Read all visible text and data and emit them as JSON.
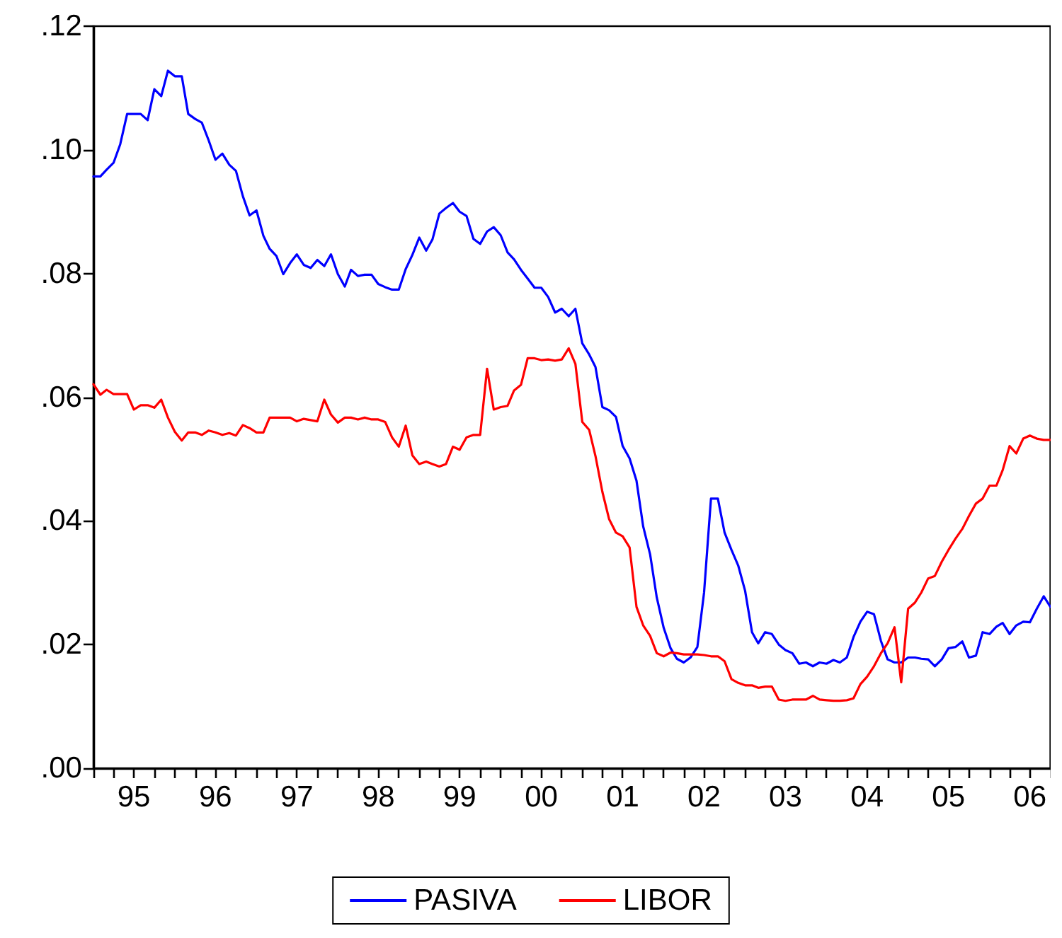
{
  "chart_data": {
    "type": "line",
    "x": [
      "1995-01",
      "1995-02",
      "1995-03",
      "1995-04",
      "1995-05",
      "1995-06",
      "1995-07",
      "1995-08",
      "1995-09",
      "1995-10",
      "1995-11",
      "1995-12",
      "1996-01",
      "1996-02",
      "1996-03",
      "1996-04",
      "1996-05",
      "1996-06",
      "1996-07",
      "1996-08",
      "1996-09",
      "1996-10",
      "1996-11",
      "1996-12",
      "1997-01",
      "1997-02",
      "1997-03",
      "1997-04",
      "1997-05",
      "1997-06",
      "1997-07",
      "1997-08",
      "1997-09",
      "1997-10",
      "1997-11",
      "1997-12",
      "1998-01",
      "1998-02",
      "1998-03",
      "1998-04",
      "1998-05",
      "1998-06",
      "1998-07",
      "1998-08",
      "1998-09",
      "1998-10",
      "1998-11",
      "1998-12",
      "1999-01",
      "1999-02",
      "1999-03",
      "1999-04",
      "1999-05",
      "1999-06",
      "1999-07",
      "1999-08",
      "1999-09",
      "1999-10",
      "1999-11",
      "1999-12",
      "2000-01",
      "2000-02",
      "2000-03",
      "2000-04",
      "2000-05",
      "2000-06",
      "2000-07",
      "2000-08",
      "2000-09",
      "2000-10",
      "2000-11",
      "2000-12",
      "2001-01",
      "2001-02",
      "2001-03",
      "2001-04",
      "2001-05",
      "2001-06",
      "2001-07",
      "2001-08",
      "2001-09",
      "2001-10",
      "2001-11",
      "2001-12",
      "2002-01",
      "2002-02",
      "2002-03",
      "2002-04",
      "2002-05",
      "2002-06",
      "2002-07",
      "2002-08",
      "2002-09",
      "2002-10",
      "2002-11",
      "2002-12",
      "2003-01",
      "2003-02",
      "2003-03",
      "2003-04",
      "2003-05",
      "2003-06",
      "2003-07",
      "2003-08",
      "2003-09",
      "2003-10",
      "2003-11",
      "2003-12",
      "2004-01",
      "2004-02",
      "2004-03",
      "2004-04",
      "2004-05",
      "2004-06",
      "2004-07",
      "2004-08",
      "2004-09",
      "2004-10",
      "2004-11",
      "2004-12",
      "2005-01",
      "2005-02",
      "2005-03",
      "2005-04",
      "2005-05",
      "2005-06",
      "2005-07",
      "2005-08",
      "2005-09",
      "2005-10",
      "2005-11",
      "2005-12",
      "2006-01",
      "2006-02",
      "2006-03",
      "2006-04",
      "2006-05",
      "2006-06",
      "2006-07",
      "2006-08",
      "2006-09",
      "2006-10"
    ],
    "series": [
      {
        "name": "PASIVA",
        "color": "#0000ff",
        "values": [
          0.0957,
          0.0957,
          0.0968,
          0.0979,
          0.1009,
          0.1058,
          0.1058,
          0.1058,
          0.1048,
          0.1098,
          0.1087,
          0.1128,
          0.1119,
          0.1119,
          0.1058,
          0.105,
          0.1044,
          0.1015,
          0.0984,
          0.0994,
          0.0976,
          0.0966,
          0.0925,
          0.0894,
          0.0902,
          0.0861,
          0.084,
          0.0828,
          0.0799,
          0.0817,
          0.0831,
          0.0814,
          0.0809,
          0.0822,
          0.0812,
          0.0831,
          0.0799,
          0.0779,
          0.0806,
          0.0796,
          0.0798,
          0.0798,
          0.0783,
          0.0778,
          0.0774,
          0.0774,
          0.0807,
          0.083,
          0.0858,
          0.0837,
          0.0855,
          0.0897,
          0.0906,
          0.0914,
          0.09,
          0.0893,
          0.0856,
          0.0848,
          0.0868,
          0.0875,
          0.0862,
          0.0834,
          0.0823,
          0.0806,
          0.0792,
          0.0777,
          0.0777,
          0.0762,
          0.0737,
          0.0743,
          0.0731,
          0.0743,
          0.0687,
          0.0669,
          0.0649,
          0.0584,
          0.0579,
          0.0568,
          0.0521,
          0.0501,
          0.0465,
          0.0391,
          0.0346,
          0.0276,
          0.0227,
          0.0194,
          0.0177,
          0.0171,
          0.0179,
          0.0196,
          0.0284,
          0.0436,
          0.0436,
          0.0381,
          0.0353,
          0.0328,
          0.0287,
          0.022,
          0.0202,
          0.022,
          0.0217,
          0.02,
          0.0191,
          0.0186,
          0.0169,
          0.0171,
          0.0165,
          0.0171,
          0.0169,
          0.0175,
          0.0171,
          0.0179,
          0.0212,
          0.0237,
          0.0253,
          0.0249,
          0.0206,
          0.0176,
          0.0171,
          0.0171,
          0.0179,
          0.0179,
          0.0177,
          0.0176,
          0.0165,
          0.0176,
          0.0194,
          0.0196,
          0.0205,
          0.0179,
          0.0182,
          0.022,
          0.0217,
          0.0229,
          0.0235,
          0.0217,
          0.0231,
          0.0237,
          0.0236,
          0.0258,
          0.0278,
          0.0261
        ]
      },
      {
        "name": "LIBOR",
        "color": "#ff0000",
        "values": [
          0.0621,
          0.0604,
          0.0612,
          0.0605,
          0.0605,
          0.0605,
          0.058,
          0.0587,
          0.0587,
          0.0583,
          0.0596,
          0.0567,
          0.0544,
          0.053,
          0.0543,
          0.0543,
          0.0539,
          0.0546,
          0.0543,
          0.0539,
          0.0542,
          0.0538,
          0.0555,
          0.055,
          0.0543,
          0.0543,
          0.0567,
          0.0567,
          0.0567,
          0.0567,
          0.0561,
          0.0565,
          0.0563,
          0.0561,
          0.0596,
          0.0572,
          0.0559,
          0.0567,
          0.0567,
          0.0564,
          0.0567,
          0.0564,
          0.0564,
          0.056,
          0.0535,
          0.052,
          0.0554,
          0.0506,
          0.0492,
          0.0496,
          0.0492,
          0.0488,
          0.0492,
          0.052,
          0.0515,
          0.0535,
          0.0539,
          0.0539,
          0.0646,
          0.058,
          0.0584,
          0.0586,
          0.0611,
          0.062,
          0.0663,
          0.0663,
          0.066,
          0.0661,
          0.0659,
          0.0661,
          0.0679,
          0.0654,
          0.056,
          0.0547,
          0.0505,
          0.0447,
          0.0403,
          0.0381,
          0.0375,
          0.0357,
          0.0261,
          0.0231,
          0.0214,
          0.0186,
          0.0181,
          0.0187,
          0.0186,
          0.0184,
          0.0184,
          0.0184,
          0.0183,
          0.0181,
          0.0181,
          0.0173,
          0.0144,
          0.0138,
          0.0134,
          0.0134,
          0.013,
          0.0132,
          0.0132,
          0.0111,
          0.0109,
          0.0111,
          0.0111,
          0.0111,
          0.0117,
          0.0111,
          0.011,
          0.0109,
          0.0109,
          0.011,
          0.0113,
          0.0136,
          0.0148,
          0.0165,
          0.0186,
          0.0202,
          0.0228,
          0.0139,
          0.0258,
          0.0268,
          0.0284,
          0.0307,
          0.0311,
          0.0334,
          0.0353,
          0.0371,
          0.0387,
          0.0408,
          0.0428,
          0.0436,
          0.0457,
          0.0457,
          0.0482,
          0.0521,
          0.0509,
          0.0533,
          0.0538,
          0.0533,
          0.0531,
          0.0531
        ]
      }
    ],
    "xlim": [
      "1995-01",
      "2006-10"
    ],
    "xticks": [
      {
        "value": "1995-01",
        "label": null
      },
      {
        "value": "1995-04",
        "label": null
      },
      {
        "value": "1995-07",
        "label": "95"
      },
      {
        "value": "1995-10",
        "label": null
      },
      {
        "value": "1996-01",
        "label": null
      },
      {
        "value": "1996-04",
        "label": null
      },
      {
        "value": "1996-07",
        "label": "96"
      },
      {
        "value": "1996-10",
        "label": null
      },
      {
        "value": "1997-01",
        "label": null
      },
      {
        "value": "1997-04",
        "label": null
      },
      {
        "value": "1997-07",
        "label": "97"
      },
      {
        "value": "1997-10",
        "label": null
      },
      {
        "value": "1998-01",
        "label": null
      },
      {
        "value": "1998-04",
        "label": null
      },
      {
        "value": "1998-07",
        "label": "98"
      },
      {
        "value": "1998-10",
        "label": null
      },
      {
        "value": "1999-01",
        "label": null
      },
      {
        "value": "1999-04",
        "label": null
      },
      {
        "value": "1999-07",
        "label": "99"
      },
      {
        "value": "1999-10",
        "label": null
      },
      {
        "value": "2000-01",
        "label": null
      },
      {
        "value": "2000-04",
        "label": null
      },
      {
        "value": "2000-07",
        "label": "00"
      },
      {
        "value": "2000-10",
        "label": null
      },
      {
        "value": "2001-01",
        "label": null
      },
      {
        "value": "2001-04",
        "label": null
      },
      {
        "value": "2001-07",
        "label": "01"
      },
      {
        "value": "2001-10",
        "label": null
      },
      {
        "value": "2002-01",
        "label": null
      },
      {
        "value": "2002-04",
        "label": null
      },
      {
        "value": "2002-07",
        "label": "02"
      },
      {
        "value": "2002-10",
        "label": null
      },
      {
        "value": "2003-01",
        "label": null
      },
      {
        "value": "2003-04",
        "label": null
      },
      {
        "value": "2003-07",
        "label": "03"
      },
      {
        "value": "2003-10",
        "label": null
      },
      {
        "value": "2004-01",
        "label": null
      },
      {
        "value": "2004-04",
        "label": null
      },
      {
        "value": "2004-07",
        "label": "04"
      },
      {
        "value": "2004-10",
        "label": null
      },
      {
        "value": "2005-01",
        "label": null
      },
      {
        "value": "2005-04",
        "label": null
      },
      {
        "value": "2005-07",
        "label": "05"
      },
      {
        "value": "2005-10",
        "label": null
      },
      {
        "value": "2006-01",
        "label": null
      },
      {
        "value": "2006-04",
        "label": null
      },
      {
        "value": "2006-07",
        "label": "06"
      },
      {
        "value": "2006-10",
        "label": null
      }
    ],
    "ylim": [
      0,
      0.12
    ],
    "yticks": [
      {
        "value": 0,
        "label": ".00"
      },
      {
        "value": 0.02,
        "label": ".02"
      },
      {
        "value": 0.04,
        "label": ".04"
      },
      {
        "value": 0.06,
        "label": ".06"
      },
      {
        "value": 0.08,
        "label": ".08"
      },
      {
        "value": 0.1,
        "label": ".10"
      },
      {
        "value": 0.12,
        "label": ".12"
      }
    ],
    "grid": false,
    "legend": "bottom",
    "marker": "none",
    "line_style": "solid"
  }
}
